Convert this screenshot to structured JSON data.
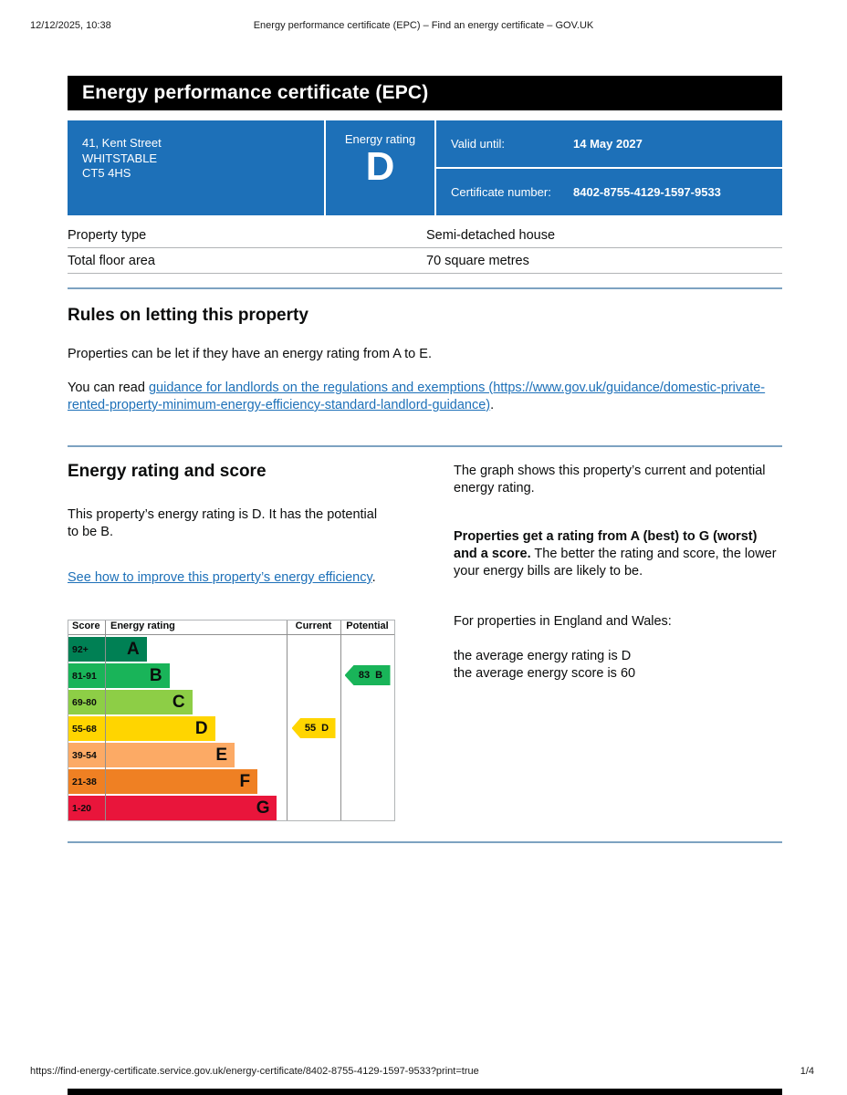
{
  "print_header": {
    "timestamp": "12/12/2025, 10:38",
    "title": "Energy performance certificate (EPC) – Find an energy certificate – GOV.UK"
  },
  "banner": {
    "title": "Energy performance certificate (EPC)"
  },
  "summary": {
    "panel_color": "#1d70b8",
    "address_lines": [
      "41, Kent Street",
      "WHITSTABLE",
      "CT5 4HS"
    ],
    "rating_label": "Energy rating",
    "rating_letter": "D",
    "valid_until_label": "Valid until:",
    "valid_until_value": "14 May 2027",
    "certificate_number_label": "Certificate number:",
    "certificate_number_value": "8402-8755-4129-1597-9533"
  },
  "property_table": {
    "rows": [
      {
        "label": "Property type",
        "value": "Semi-detached house"
      },
      {
        "label": "Total floor area",
        "value": "70 square metres"
      }
    ]
  },
  "rules_section": {
    "heading": "Rules on letting this property",
    "paragraph": "Properties can be let if they have an energy rating from A to E.",
    "link_prefix": "You can read ",
    "link_text": "guidance for landlords on the regulations and exemptions (https://www.gov.uk/guidance/domestic-private-rented-property-minimum-energy-efficiency-standard-landlord-guidance)",
    "link_suffix": "."
  },
  "rating_section": {
    "heading": "Energy rating and score",
    "intro": "This property’s energy rating is D. It has the potential to be B.",
    "improve_link_text": "See how to improve this property’s energy efficiency",
    "improve_link_suffix": ".",
    "graph_intro": "The graph shows this property’s current and potential energy rating.",
    "explain_bold": "Properties get a rating from A (best) to G (worst) and a score.",
    "explain_rest": " The better the rating and score, the lower your energy bills are likely to be.",
    "region_line": "For properties in England and Wales:",
    "average_rating_line": "the average energy rating is D",
    "average_score_line": "the average energy score is 60"
  },
  "chart_data": {
    "type": "epc-rating-graph",
    "headers": {
      "score": "Score",
      "rating": "Energy rating",
      "current": "Current",
      "potential": "Potential"
    },
    "bands": [
      {
        "score": "92+",
        "letter": "A",
        "color": "#008054",
        "width_pct": 24
      },
      {
        "score": "81-91",
        "letter": "B",
        "color": "#19b459",
        "width_pct": 31
      },
      {
        "score": "69-80",
        "letter": "C",
        "color": "#8dce46",
        "width_pct": 38
      },
      {
        "score": "55-68",
        "letter": "D",
        "color": "#ffd500",
        "width_pct": 45
      },
      {
        "score": "39-54",
        "letter": "E",
        "color": "#fcaa65",
        "width_pct": 51
      },
      {
        "score": "21-38",
        "letter": "F",
        "color": "#ef8023",
        "width_pct": 58
      },
      {
        "score": "1-20",
        "letter": "G",
        "color": "#e9153b",
        "width_pct": 64
      }
    ],
    "current": {
      "score": "55",
      "band": "D",
      "color": "#ffd500"
    },
    "potential": {
      "score": "83",
      "band": "B",
      "color": "#19b459"
    }
  },
  "footer": {
    "url": "https://find-energy-certificate.service.gov.uk/energy-certificate/8402-8755-4129-1597-9533?print=true",
    "page_indicator": "1/4"
  }
}
